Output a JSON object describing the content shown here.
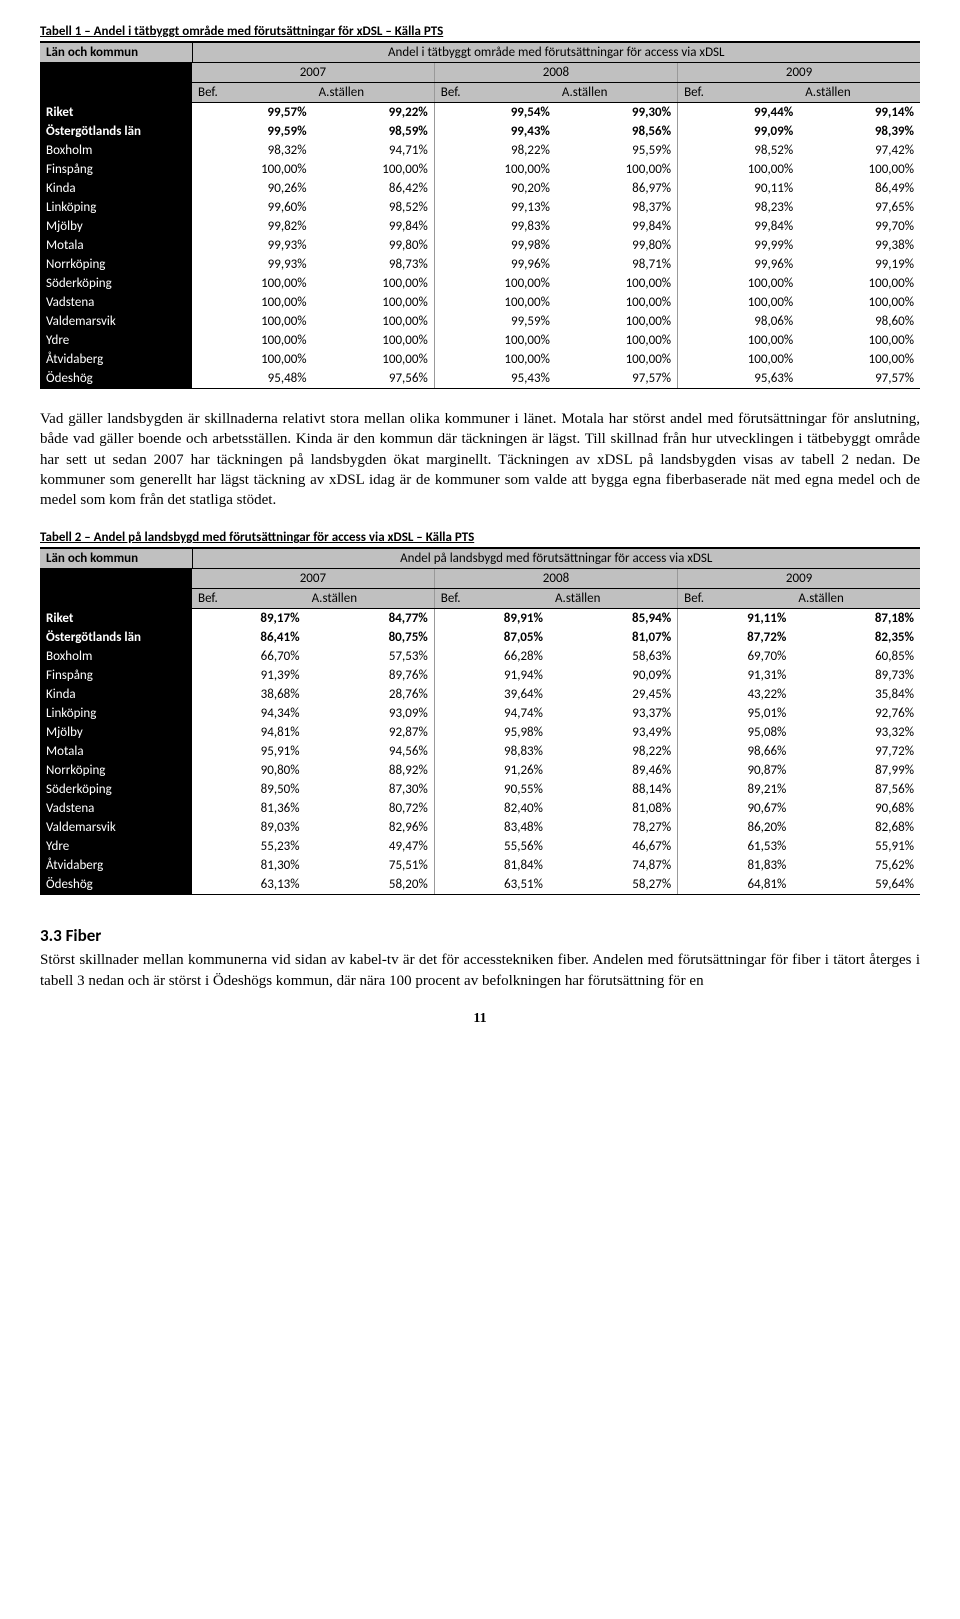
{
  "table1": {
    "caption": "Tabell 1 – Andel i tätbyggt område med förutsättningar för xDSL – Källa PTS",
    "colHeader1": "Län och kommun",
    "spanHeader": "Andel i tätbyggt område med förutsättningar för access via xDSL",
    "years": [
      "2007",
      "2008",
      "2009"
    ],
    "subCols": [
      "Bef.",
      "A.ställen",
      "Bef.",
      "A.ställen",
      "Bef.",
      "A.ställen"
    ],
    "rows": [
      {
        "label": "Riket",
        "bold": true,
        "cells": [
          "99,57%",
          "99,22%",
          "99,54%",
          "99,30%",
          "99,44%",
          "99,14%"
        ]
      },
      {
        "label": "Östergötlands län",
        "bold": true,
        "cells": [
          "99,59%",
          "98,59%",
          "99,43%",
          "98,56%",
          "99,09%",
          "98,39%"
        ]
      },
      {
        "label": "Boxholm",
        "cells": [
          "98,32%",
          "94,71%",
          "98,22%",
          "95,59%",
          "98,52%",
          "97,42%"
        ]
      },
      {
        "label": "Finspång",
        "cells": [
          "100,00%",
          "100,00%",
          "100,00%",
          "100,00%",
          "100,00%",
          "100,00%"
        ]
      },
      {
        "label": "Kinda",
        "cells": [
          "90,26%",
          "86,42%",
          "90,20%",
          "86,97%",
          "90,11%",
          "86,49%"
        ]
      },
      {
        "label": "Linköping",
        "cells": [
          "99,60%",
          "98,52%",
          "99,13%",
          "98,37%",
          "98,23%",
          "97,65%"
        ]
      },
      {
        "label": "Mjölby",
        "cells": [
          "99,82%",
          "99,84%",
          "99,83%",
          "99,84%",
          "99,84%",
          "99,70%"
        ]
      },
      {
        "label": "Motala",
        "cells": [
          "99,93%",
          "99,80%",
          "99,98%",
          "99,80%",
          "99,99%",
          "99,38%"
        ]
      },
      {
        "label": "Norrköping",
        "cells": [
          "99,93%",
          "98,73%",
          "99,96%",
          "98,71%",
          "99,96%",
          "99,19%"
        ]
      },
      {
        "label": "Söderköping",
        "cells": [
          "100,00%",
          "100,00%",
          "100,00%",
          "100,00%",
          "100,00%",
          "100,00%"
        ]
      },
      {
        "label": "Vadstena",
        "cells": [
          "100,00%",
          "100,00%",
          "100,00%",
          "100,00%",
          "100,00%",
          "100,00%"
        ]
      },
      {
        "label": "Valdemarsvik",
        "cells": [
          "100,00%",
          "100,00%",
          "99,59%",
          "100,00%",
          "98,06%",
          "98,60%"
        ]
      },
      {
        "label": "Ydre",
        "cells": [
          "100,00%",
          "100,00%",
          "100,00%",
          "100,00%",
          "100,00%",
          "100,00%"
        ]
      },
      {
        "label": "Åtvidaberg",
        "cells": [
          "100,00%",
          "100,00%",
          "100,00%",
          "100,00%",
          "100,00%",
          "100,00%"
        ]
      },
      {
        "label": "Ödeshög",
        "cells": [
          "95,48%",
          "97,56%",
          "95,43%",
          "97,57%",
          "95,63%",
          "97,57%"
        ]
      }
    ]
  },
  "paragraph1": "Vad gäller landsbygden är skillnaderna relativt stora mellan olika kommuner i länet. Motala har störst andel med förutsättningar för anslutning, både vad gäller boende och arbetsställen. Kinda är den kommun där täckningen är lägst. Till skillnad från hur utvecklingen i tätbebyggt område har sett ut sedan 2007 har täckningen på landsbygden ökat marginellt. Täckningen av xDSL på landsbygden visas av tabell 2 nedan. De kommuner som generellt har lägst täckning av xDSL idag är de kommuner som valde att bygga egna fiberbaserade nät med egna medel och de medel som kom från det statliga stödet.",
  "table2": {
    "caption": "Tabell 2 – Andel på landsbygd med förutsättningar för access via xDSL – Källa PTS",
    "colHeader1": "Län och kommun",
    "spanHeader": "Andel på landsbygd med förutsättningar för access via xDSL",
    "years": [
      "2007",
      "2008",
      "2009"
    ],
    "subCols": [
      "Bef.",
      "A.ställen",
      "Bef.",
      "A.ställen",
      "Bef.",
      "A.ställen"
    ],
    "rows": [
      {
        "label": "Riket",
        "bold": true,
        "cells": [
          "89,17%",
          "84,77%",
          "89,91%",
          "85,94%",
          "91,11%",
          "87,18%"
        ]
      },
      {
        "label": "Östergötlands län",
        "bold": true,
        "cells": [
          "86,41%",
          "80,75%",
          "87,05%",
          "81,07%",
          "87,72%",
          "82,35%"
        ]
      },
      {
        "label": "Boxholm",
        "cells": [
          "66,70%",
          "57,53%",
          "66,28%",
          "58,63%",
          "69,70%",
          "60,85%"
        ]
      },
      {
        "label": "Finspång",
        "cells": [
          "91,39%",
          "89,76%",
          "91,94%",
          "90,09%",
          "91,31%",
          "89,73%"
        ]
      },
      {
        "label": "Kinda",
        "cells": [
          "38,68%",
          "28,76%",
          "39,64%",
          "29,45%",
          "43,22%",
          "35,84%"
        ]
      },
      {
        "label": "Linköping",
        "cells": [
          "94,34%",
          "93,09%",
          "94,74%",
          "93,37%",
          "95,01%",
          "92,76%"
        ]
      },
      {
        "label": "Mjölby",
        "cells": [
          "94,81%",
          "92,87%",
          "95,98%",
          "93,49%",
          "95,08%",
          "93,32%"
        ]
      },
      {
        "label": "Motala",
        "cells": [
          "95,91%",
          "94,56%",
          "98,83%",
          "98,22%",
          "98,66%",
          "97,72%"
        ]
      },
      {
        "label": "Norrköping",
        "cells": [
          "90,80%",
          "88,92%",
          "91,26%",
          "89,46%",
          "90,87%",
          "87,99%"
        ]
      },
      {
        "label": "Söderköping",
        "cells": [
          "89,50%",
          "87,30%",
          "90,55%",
          "88,14%",
          "89,21%",
          "87,56%"
        ]
      },
      {
        "label": "Vadstena",
        "cells": [
          "81,36%",
          "80,72%",
          "82,40%",
          "81,08%",
          "90,67%",
          "90,68%"
        ]
      },
      {
        "label": "Valdemarsvik",
        "cells": [
          "89,03%",
          "82,96%",
          "83,48%",
          "78,27%",
          "86,20%",
          "82,68%"
        ]
      },
      {
        "label": "Ydre",
        "cells": [
          "55,23%",
          "49,47%",
          "55,56%",
          "46,67%",
          "61,53%",
          "55,91%"
        ]
      },
      {
        "label": "Åtvidaberg",
        "cells": [
          "81,30%",
          "75,51%",
          "81,84%",
          "74,87%",
          "81,83%",
          "75,62%"
        ]
      },
      {
        "label": "Ödeshög",
        "cells": [
          "63,13%",
          "58,20%",
          "63,51%",
          "58,27%",
          "64,81%",
          "59,64%"
        ]
      }
    ]
  },
  "sectionHeading": "3.3 Fiber",
  "paragraph2": "Störst skillnader mellan kommunerna vid sidan av kabel-tv är det för accesstekniken fiber. Andelen med förutsättningar för fiber i tätort återges i tabell 3 nedan och är störst i Ödeshögs kommun, där nära 100 procent av befolkningen har förutsättning för en",
  "pageNumber": "11"
}
